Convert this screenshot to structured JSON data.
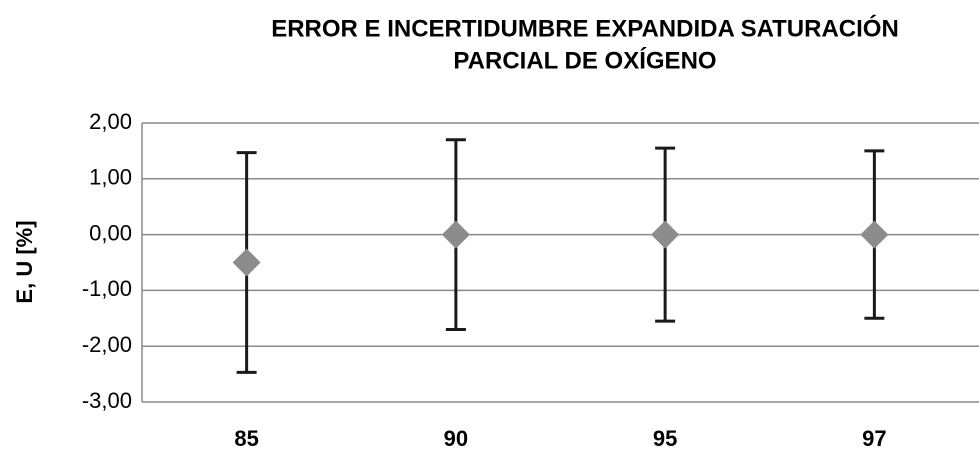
{
  "chart_data": {
    "type": "errorbar",
    "title": [
      "ERROR E INCERTIDUMBRE EXPANDIDA SATURACIÓN",
      "PARCIAL DE OXÍGENO"
    ],
    "ylabel": "E, U [%]",
    "categories": [
      "85",
      "90",
      "95",
      "97"
    ],
    "values": [
      -0.5,
      0,
      0,
      0
    ],
    "errors": [
      1.97,
      1.7,
      1.55,
      1.5
    ],
    "color": "#8c8c8c",
    "error_color": "#1a1a1a",
    "ylim": [
      -3,
      2
    ],
    "yticks": [
      {
        "value": -3,
        "label": "-3,00"
      },
      {
        "value": -2,
        "label": "-2,00"
      },
      {
        "value": -1,
        "label": "-1,00"
      },
      {
        "value": 0,
        "label": "0,00"
      },
      {
        "value": 1,
        "label": "1,00"
      },
      {
        "value": 2,
        "label": "2,00"
      }
    ],
    "grid": true
  }
}
